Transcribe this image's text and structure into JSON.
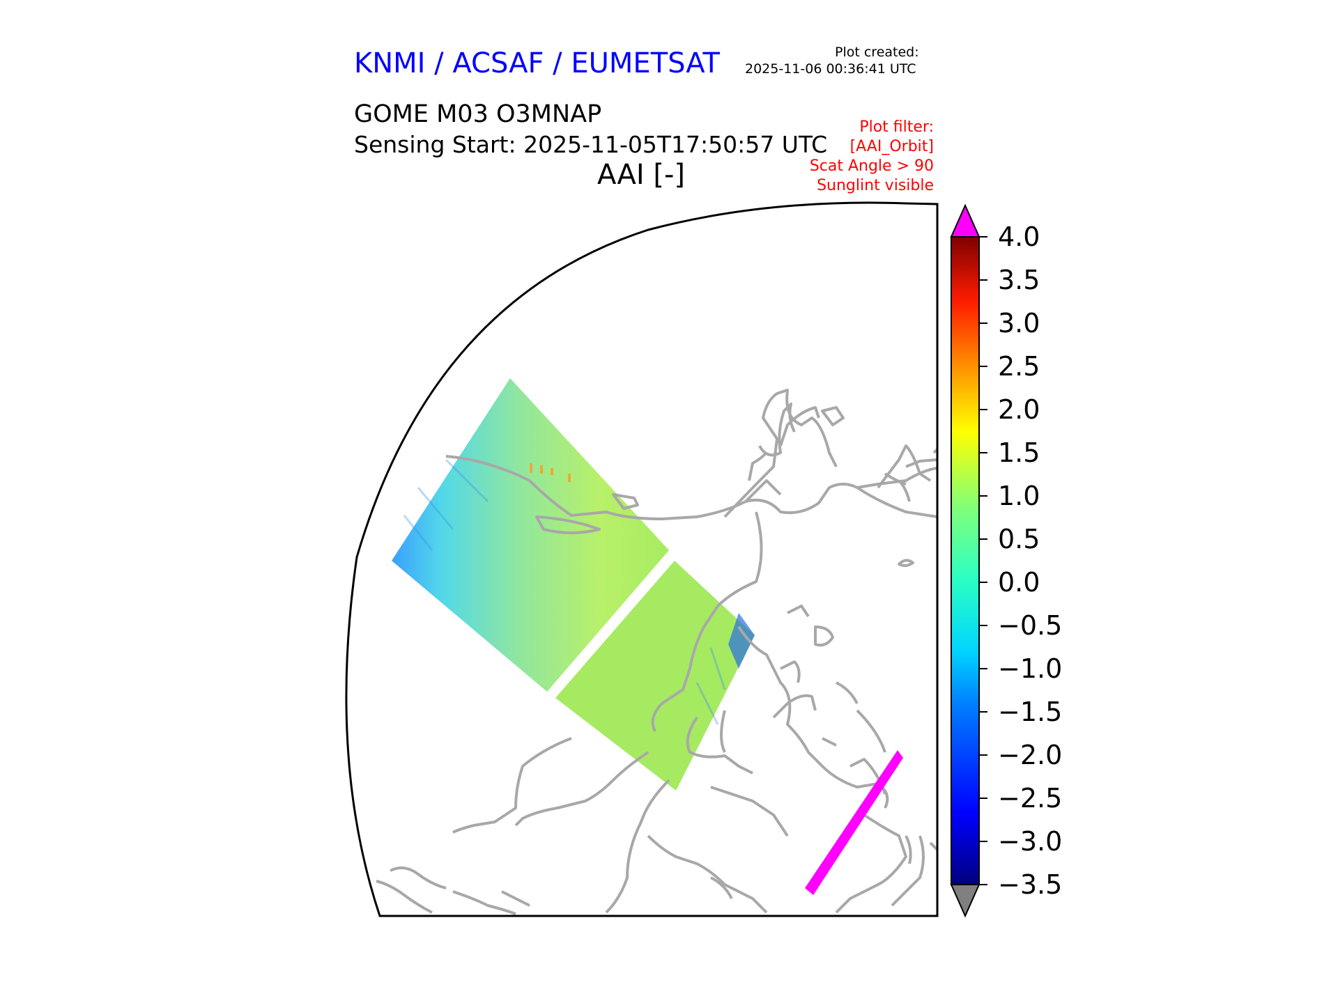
{
  "header": {
    "agency": "KNMI / ACSAF / EUMETSAT",
    "created_label": "Plot created:",
    "created_value": "2025-11-06 00:36:41 UTC"
  },
  "plot": {
    "product": "GOME M03 O3MNAP",
    "sensing_start": "Sensing Start: 2025-11-05T17:50:57 UTC",
    "variable": "AAI [-]"
  },
  "filter": {
    "title": "Plot filter:",
    "items": [
      "[AAI_Orbit]",
      "Scat Angle > 90",
      "Sunglint visible"
    ]
  },
  "colorbar": {
    "ticks": [
      "4.0",
      "3.5",
      "3.0",
      "2.5",
      "2.0",
      "1.5",
      "1.0",
      "0.5",
      "0.0",
      "−0.5",
      "−1.0",
      "−1.5",
      "−2.0",
      "−2.5",
      "−3.0",
      "−3.5"
    ],
    "over_color": "#ff00ff",
    "under_color": "#808080"
  },
  "colors": {
    "coastline": "#a8a8a8",
    "swath_main": "#9ee86a",
    "sunglint": "#ff00ff",
    "agency_text": "#0000ff",
    "filter_text": "#ff0000"
  }
}
